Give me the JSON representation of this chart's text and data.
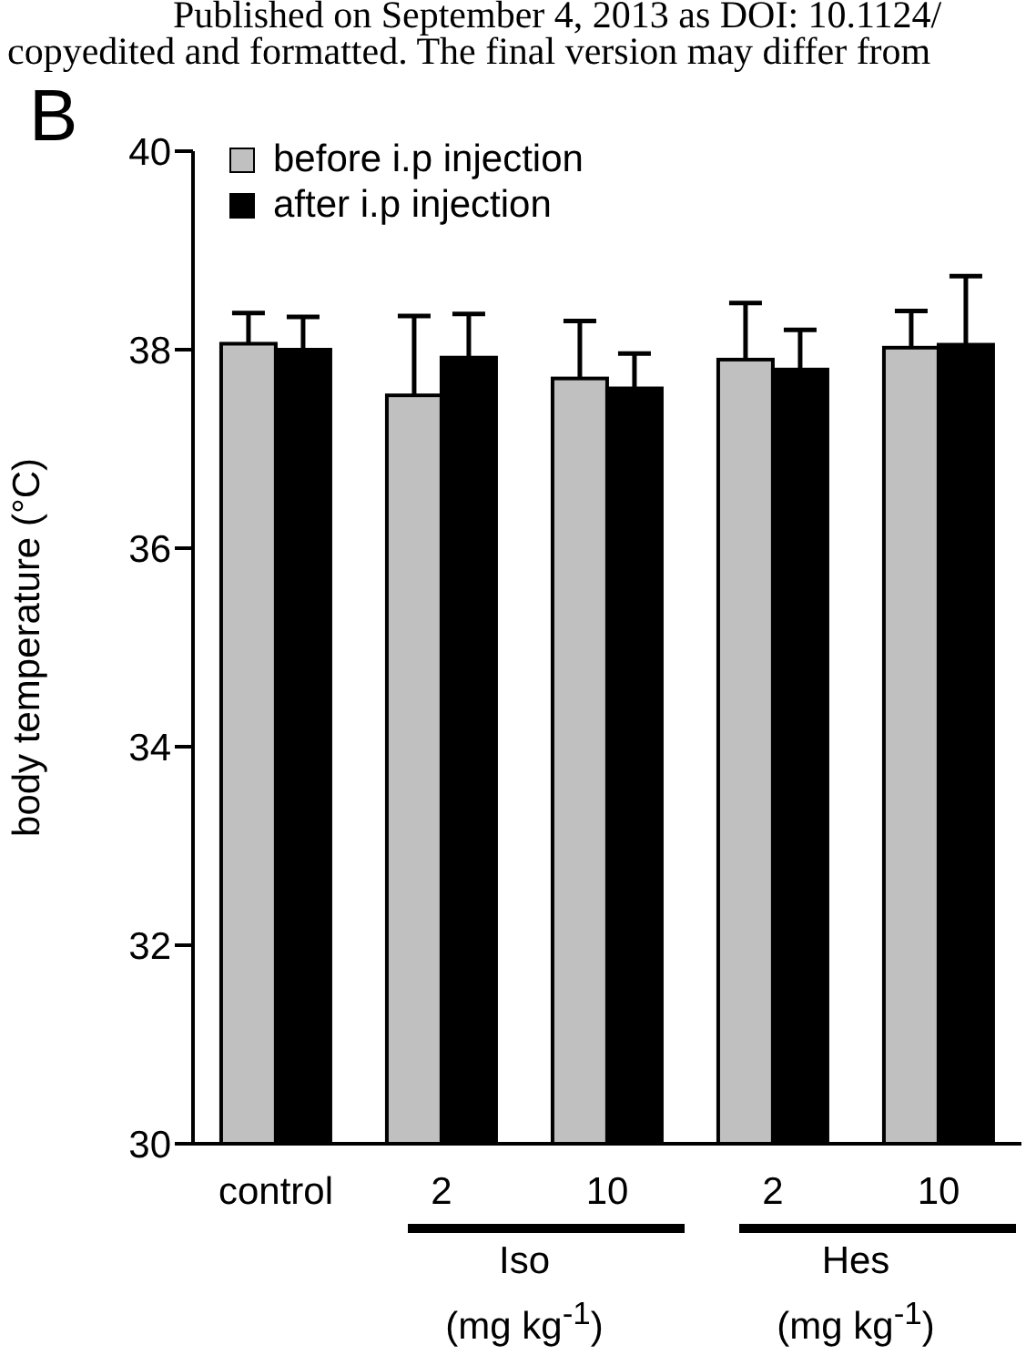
{
  "chart_data": {
    "type": "bar",
    "ylabel": "body temperature (°C)",
    "categories": [
      "control",
      "2",
      "10",
      "2",
      "10"
    ],
    "series": [
      {
        "name": "before i.p injection",
        "color": "#c0c0c0",
        "values": [
          38.06,
          37.54,
          37.71,
          37.9,
          38.02
        ],
        "errors": [
          [
            38.06,
            38.37
          ],
          [
            37.54,
            38.34
          ],
          [
            37.71,
            38.29
          ],
          [
            37.9,
            38.47
          ],
          [
            38.02,
            38.39
          ]
        ]
      },
      {
        "name": "after i.p injection",
        "color": "#000000",
        "values": [
          38.0,
          37.92,
          37.61,
          37.8,
          38.05
        ],
        "errors": [
          [
            38.0,
            38.33
          ],
          [
            37.92,
            38.36
          ],
          [
            37.61,
            37.96
          ],
          [
            37.8,
            38.2
          ],
          [
            38.05,
            38.74
          ]
        ]
      }
    ],
    "ylim": [
      30,
      40
    ],
    "yticks": [
      30,
      32,
      34,
      36,
      38,
      40
    ],
    "grid": false,
    "legend": "top left",
    "annotations": [
      "Iso (mg kg$^{-1}$)",
      "Hes (mg kg$^{-1}$)",
      "B",
      "Published on September 4, 2013 as DOI: 10.1124/",
      "copyedited and formatted. The final version may differ from"
    ]
  }
}
